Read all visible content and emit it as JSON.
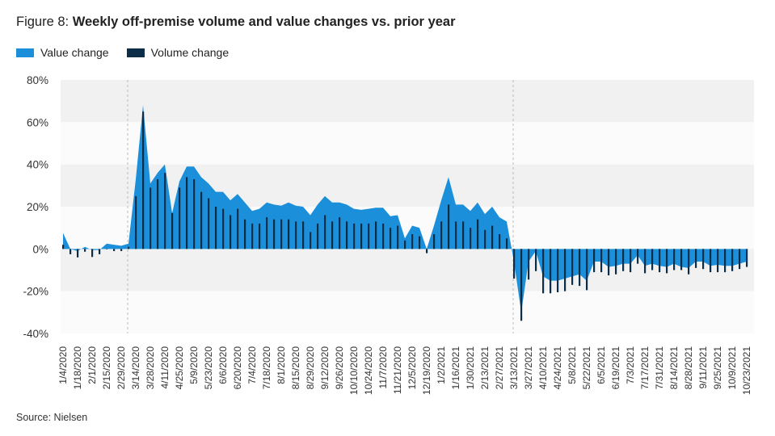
{
  "title_prefix": "Figure 8:",
  "title_main": "Weekly off-premise volume and value changes vs. prior year",
  "source": "Source: Nielsen",
  "chart_data": {
    "type": "area+bar",
    "title": "Weekly off-premise volume and value changes vs. prior year",
    "legend_position": "top-left",
    "xlabel": "",
    "ylabel": "",
    "ylim": [
      -40,
      80
    ],
    "yticks": [
      80,
      60,
      40,
      20,
      0,
      -20,
      -40
    ],
    "ytick_labels": [
      "80%",
      "60%",
      "40%",
      "20%",
      "0%",
      "-20%",
      "-40%"
    ],
    "grid": "alternating horizontal bands",
    "colors": {
      "value": "#1b8fd9",
      "volume": "#0c2d48",
      "band": "#f1f1f1",
      "band_alt": "#fbfbfb",
      "ref_line": "#bbbbbb"
    },
    "xtick_labels": [
      "1/4/2020",
      "1/18/2020",
      "2/1/2020",
      "2/15/2020",
      "2/29/2020",
      "3/14/2020",
      "3/28/2020",
      "4/11/2020",
      "4/25/2020",
      "5/9/2020",
      "5/23/2020",
      "6/6/2020",
      "6/20/2020",
      "7/4/2020",
      "7/18/2020",
      "8/1/2020",
      "8/15/2020",
      "8/29/2020",
      "9/12/2020",
      "9/26/2020",
      "10/10/2020",
      "10/24/2020",
      "11/7/2020",
      "11/21/2020",
      "12/5/2020",
      "12/19/2020",
      "1/2/2021",
      "1/16/2021",
      "1/30/2021",
      "2/13/2021",
      "2/27/2021",
      "3/13/2021",
      "3/27/2021",
      "4/10/2021",
      "4/24/2021",
      "5/8/2021",
      "5/22/2021",
      "6/5/2021",
      "6/19/2021",
      "7/3/2021",
      "7/17/2021",
      "7/31/2021",
      "8/14/2021",
      "8/28/2021",
      "9/11/2021",
      "9/25/2021",
      "10/9/2021",
      "10/23/2021"
    ],
    "reference_lines": [
      "3/7/2020",
      "3/13/2021"
    ],
    "x": [
      "1/4/2020",
      "1/11/2020",
      "1/18/2020",
      "1/25/2020",
      "2/1/2020",
      "2/8/2020",
      "2/15/2020",
      "2/22/2020",
      "2/29/2020",
      "3/7/2020",
      "3/14/2020",
      "3/21/2020",
      "3/28/2020",
      "4/4/2020",
      "4/11/2020",
      "4/18/2020",
      "4/25/2020",
      "5/2/2020",
      "5/9/2020",
      "5/16/2020",
      "5/23/2020",
      "5/30/2020",
      "6/6/2020",
      "6/13/2020",
      "6/20/2020",
      "6/27/2020",
      "7/4/2020",
      "7/11/2020",
      "7/18/2020",
      "7/25/2020",
      "8/1/2020",
      "8/8/2020",
      "8/15/2020",
      "8/22/2020",
      "8/29/2020",
      "9/5/2020",
      "9/12/2020",
      "9/19/2020",
      "9/26/2020",
      "10/3/2020",
      "10/10/2020",
      "10/17/2020",
      "10/24/2020",
      "10/31/2020",
      "11/7/2020",
      "11/14/2020",
      "11/21/2020",
      "11/28/2020",
      "12/5/2020",
      "12/12/2020",
      "12/19/2020",
      "12/26/2020",
      "1/2/2021",
      "1/9/2021",
      "1/16/2021",
      "1/23/2021",
      "1/30/2021",
      "2/6/2021",
      "2/13/2021",
      "2/20/2021",
      "2/27/2021",
      "3/6/2021",
      "3/13/2021",
      "3/20/2021",
      "3/27/2021",
      "4/3/2021",
      "4/10/2021",
      "4/17/2021",
      "4/24/2021",
      "5/1/2021",
      "5/8/2021",
      "5/15/2021",
      "5/22/2021",
      "5/29/2021",
      "6/5/2021",
      "6/12/2021",
      "6/19/2021",
      "6/26/2021",
      "7/3/2021",
      "7/10/2021",
      "7/17/2021",
      "7/24/2021",
      "7/31/2021",
      "8/7/2021",
      "8/14/2021",
      "8/21/2021",
      "8/28/2021",
      "9/4/2021",
      "9/11/2021",
      "9/18/2021",
      "9/25/2021",
      "10/2/2021",
      "10/9/2021",
      "10/16/2021",
      "10/23/2021"
    ],
    "series": [
      {
        "name": "Value change",
        "kind": "area",
        "values": [
          7.6,
          0,
          -1,
          1,
          -0.5,
          -0.5,
          2.5,
          2,
          1.5,
          2.5,
          33,
          68,
          31,
          36,
          40,
          17,
          32,
          39,
          39,
          34,
          31,
          27,
          27,
          23,
          26,
          22,
          18,
          19,
          22,
          21,
          20.5,
          22,
          20.5,
          20,
          16,
          21,
          25,
          22,
          22,
          21,
          19,
          18.5,
          19,
          19.5,
          19.5,
          15.5,
          16,
          5,
          11,
          10,
          0,
          11,
          23,
          34,
          21,
          21,
          18,
          22,
          16.5,
          20,
          15,
          13,
          -6,
          -30,
          -6,
          -1,
          -13,
          -15,
          -15,
          -14,
          -13,
          -12,
          -15,
          -6,
          -6,
          -8.5,
          -8,
          -7,
          -7,
          -3,
          -8,
          -7,
          -8,
          -8.5,
          -7,
          -8.5,
          -9,
          -6,
          -6,
          -8,
          -7.5,
          -8,
          -8,
          -7,
          -6
        ]
      },
      {
        "name": "Volume change",
        "kind": "bar",
        "values": [
          2,
          -2.5,
          -4,
          -1.3,
          -3.8,
          -2.5,
          0,
          -1,
          -1,
          1,
          25,
          65,
          29,
          33,
          36,
          17,
          29,
          34,
          33,
          27,
          24,
          20,
          19,
          16,
          19,
          14,
          12,
          12,
          15,
          14,
          14,
          14,
          13,
          13,
          8,
          12,
          16,
          13,
          15,
          13,
          12,
          12,
          12,
          13,
          12,
          10,
          11,
          4,
          7,
          6,
          -2,
          7,
          13,
          21,
          13,
          13,
          10,
          14,
          9,
          11,
          7,
          5,
          -14,
          -34,
          -14.5,
          -10.5,
          -21,
          -21,
          -20.5,
          -20,
          -17,
          -17.5,
          -19.5,
          -11,
          -11,
          -12.5,
          -12,
          -10.5,
          -11,
          -7,
          -11.5,
          -10,
          -11,
          -11.5,
          -10,
          -10,
          -12,
          -9,
          -9.5,
          -11,
          -11,
          -11,
          -10.5,
          -9.5,
          -8.5
        ]
      }
    ]
  }
}
